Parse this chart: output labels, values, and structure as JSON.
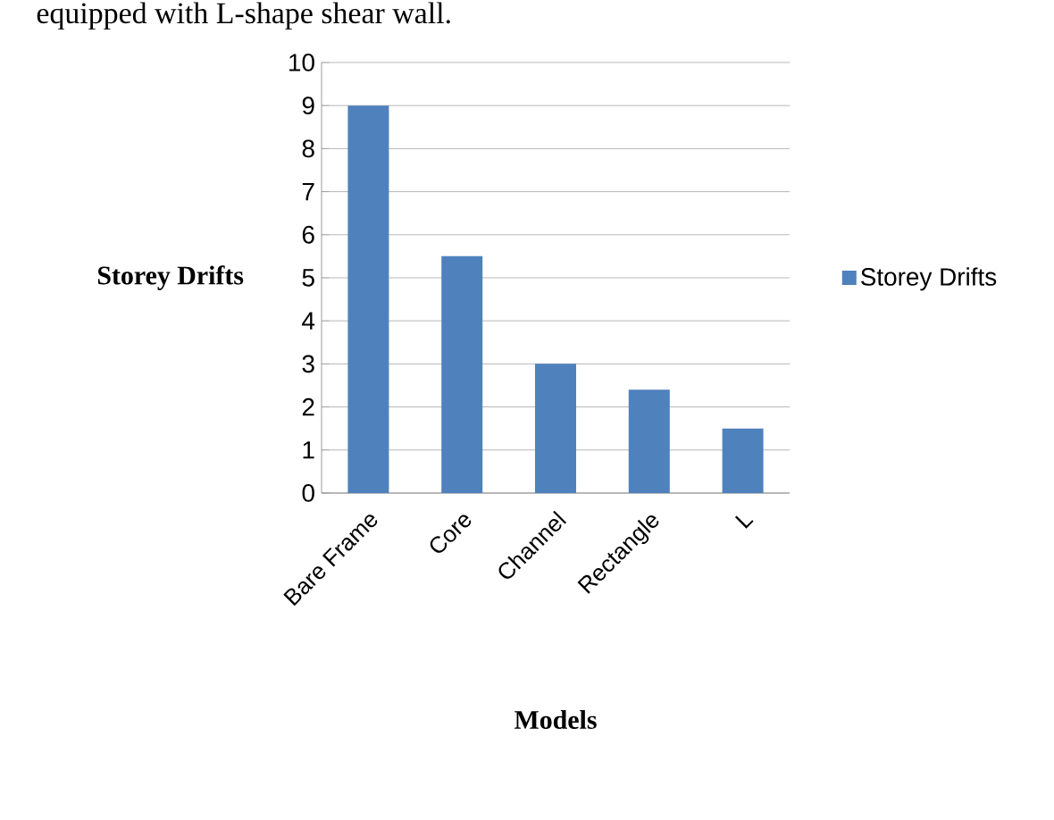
{
  "chart_data": {
    "type": "bar",
    "annotations": [
      "equipped with L-shape shear wall."
    ],
    "categories": [
      "Bare Frame",
      "Core",
      "Channel",
      "Rectangle",
      "L"
    ],
    "series": [
      {
        "name": "Storey Drifts",
        "color": "#4f81bd",
        "values": [
          9,
          5.5,
          3,
          2.4,
          1.5
        ]
      }
    ],
    "xlabel": "Models",
    "ylabel": "Storey Drifts",
    "ylim": [
      0,
      10
    ],
    "yticks": [
      0,
      1,
      2,
      3,
      4,
      5,
      6,
      7,
      8,
      9,
      10
    ],
    "grid": "y",
    "legend": "right"
  }
}
